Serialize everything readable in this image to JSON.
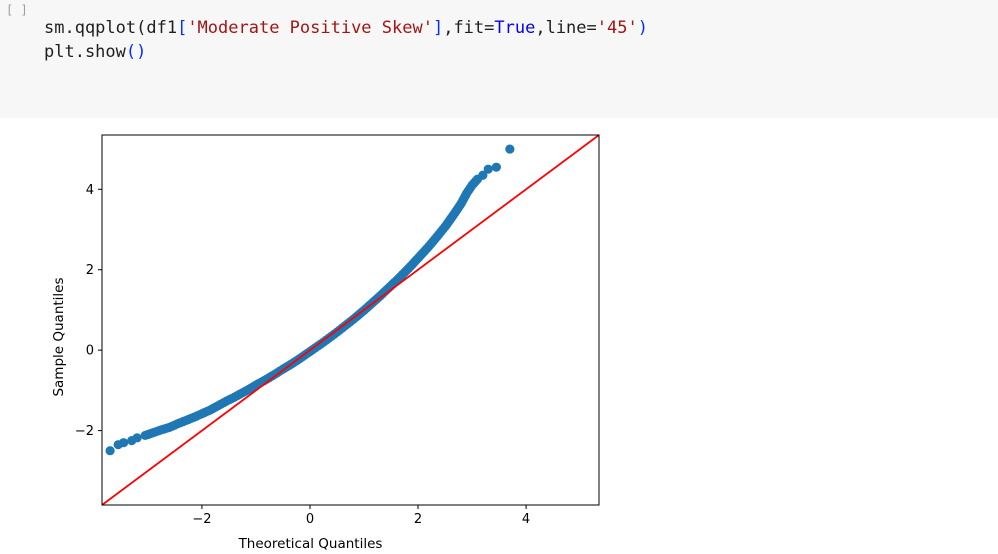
{
  "cell": {
    "prompt": "[ ]",
    "code_lines": [
      [
        {
          "t": "sm.qqplot(df1",
          "c": "plain"
        },
        {
          "t": "[",
          "c": "bracket"
        },
        {
          "t": "'Moderate Positive Skew'",
          "c": "string"
        },
        {
          "t": "]",
          "c": "bracket"
        },
        {
          "t": ",fit=",
          "c": "plain"
        },
        {
          "t": "True",
          "c": "keyword"
        },
        {
          "t": ",line=",
          "c": "plain"
        },
        {
          "t": "'45'",
          "c": "string"
        },
        {
          "t": ")",
          "c": "bracket"
        }
      ],
      [
        {
          "t": "plt.show",
          "c": "plain"
        },
        {
          "t": "()",
          "c": "bracket"
        }
      ]
    ],
    "token_colors": {
      "plain": "#1f1f1f",
      "string": "#a31515",
      "keyword": "#0000ff",
      "bracket": "#0431fa"
    }
  },
  "chart_data": {
    "type": "scatter",
    "xlabel": "Theoretical Quantiles",
    "ylabel": "Sample Quantiles",
    "xlim": [
      -3.85,
      5.35
    ],
    "ylim": [
      -3.85,
      5.35
    ],
    "xticks": [
      -2,
      0,
      2,
      4
    ],
    "yticks": [
      -2,
      0,
      2,
      4
    ],
    "xtick_labels": [
      "−2",
      "0",
      "2",
      "4"
    ],
    "ytick_labels": [
      "−2",
      "0",
      "2",
      "4"
    ],
    "grid": false,
    "marker_color": "#1f77b4",
    "line_color": "#ff0000",
    "reference_line": {
      "type": "45",
      "from": [
        -3.85,
        -3.85
      ],
      "to": [
        5.35,
        5.35
      ]
    },
    "series": [
      {
        "x": [
          -3.7,
          -3.55,
          -3.45,
          -3.3,
          -3.2,
          -3.05,
          -2.9,
          -2.75,
          -2.6,
          -2.45,
          -2.3,
          -2.15,
          -2.0,
          -1.85,
          -1.7,
          -1.55,
          -1.4,
          -1.25,
          -1.1,
          -0.95,
          -0.8,
          -0.65,
          -0.5,
          -0.35,
          -0.2,
          -0.05,
          0.1,
          0.25,
          0.4,
          0.55,
          0.7,
          0.85,
          1.0,
          1.15,
          1.3,
          1.45,
          1.6,
          1.75,
          1.9,
          2.05,
          2.2,
          2.35,
          2.5,
          2.65,
          2.8,
          2.9,
          3.0,
          3.1,
          3.2,
          3.3,
          3.45,
          3.7
        ],
        "y": [
          -2.5,
          -2.35,
          -2.3,
          -2.25,
          -2.18,
          -2.12,
          -2.05,
          -1.98,
          -1.92,
          -1.83,
          -1.75,
          -1.67,
          -1.58,
          -1.49,
          -1.38,
          -1.27,
          -1.17,
          -1.06,
          -0.95,
          -0.83,
          -0.72,
          -0.6,
          -0.47,
          -0.35,
          -0.22,
          -0.08,
          0.06,
          0.2,
          0.35,
          0.5,
          0.66,
          0.82,
          0.99,
          1.17,
          1.35,
          1.54,
          1.73,
          1.93,
          2.14,
          2.36,
          2.58,
          2.82,
          3.07,
          3.35,
          3.65,
          3.9,
          4.1,
          4.25,
          4.35,
          4.5,
          4.55,
          5.0
        ]
      }
    ]
  }
}
